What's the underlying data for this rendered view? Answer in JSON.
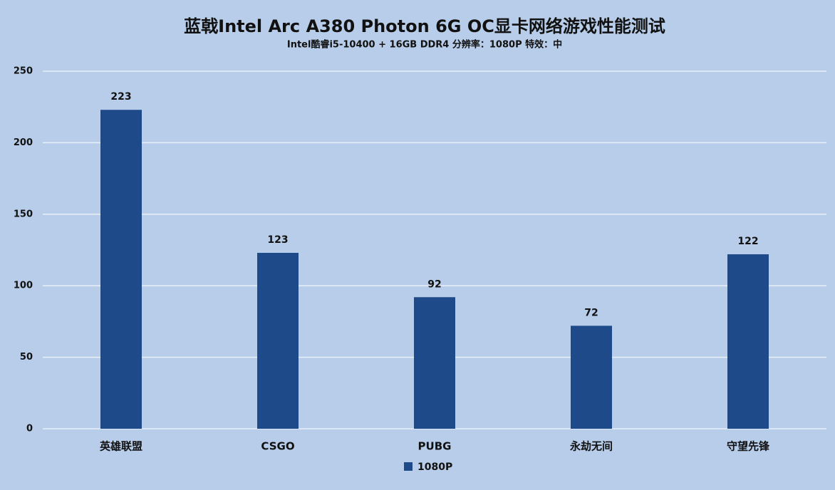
{
  "chart_data": {
    "type": "bar",
    "title": "蓝戟Intel Arc A380 Photon 6G OC显卡网络游戏性能测试",
    "subtitle": "Intel酷睿i5-10400 + 16GB DDR4  分辨率：1080P 特效：中",
    "categories": [
      "英雄联盟",
      "CSGO",
      "PUBG",
      "永劫无间",
      "守望先锋"
    ],
    "series": [
      {
        "name": "1080P",
        "color": "#1f4a8a",
        "values": [
          223,
          123,
          92,
          72,
          122
        ]
      }
    ],
    "ylim": [
      0,
      250
    ],
    "yticks": [
      0,
      50,
      100,
      150,
      200,
      250
    ],
    "grid": true,
    "legend": "bottom"
  }
}
